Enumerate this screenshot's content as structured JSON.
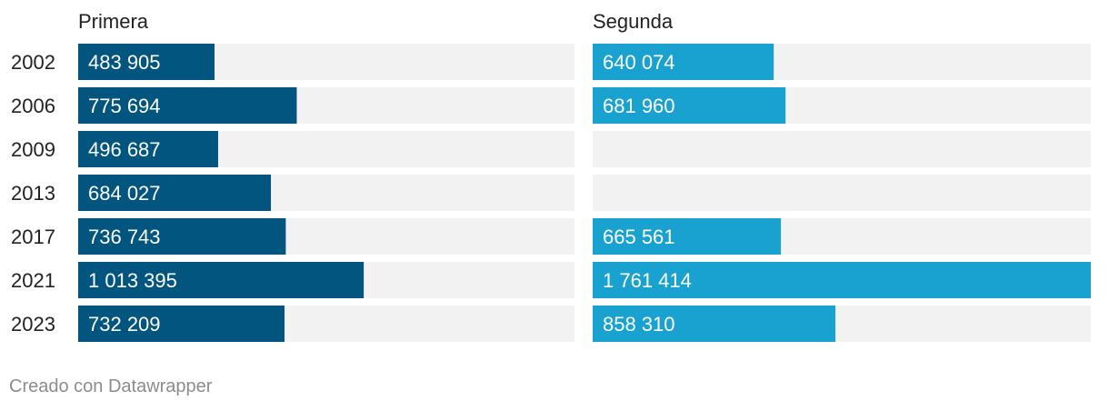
{
  "chart_data": {
    "type": "bar",
    "orientation": "horizontal",
    "layout": "small-multiples",
    "categories": [
      "2002",
      "2006",
      "2009",
      "2013",
      "2017",
      "2021",
      "2023"
    ],
    "series": [
      {
        "name": "Primera",
        "values": [
          483905,
          775694,
          496687,
          684027,
          736743,
          1013395,
          732209
        ],
        "labels": [
          "483 905",
          "775 694",
          "496 687",
          "684 027",
          "736 743",
          "1 013 395",
          "732 209"
        ],
        "color": "#01557f"
      },
      {
        "name": "Segunda",
        "values": [
          640074,
          681960,
          null,
          null,
          665561,
          1761414,
          858310
        ],
        "labels": [
          "640 074",
          "681 960",
          "",
          "",
          "665 561",
          "1 761 414",
          "858 310"
        ],
        "color": "#19a2cf"
      }
    ],
    "xlim": [
      0,
      1761414
    ],
    "track_color": "#f2f2f2"
  },
  "footer": {
    "credit": "Creado con Datawrapper"
  }
}
